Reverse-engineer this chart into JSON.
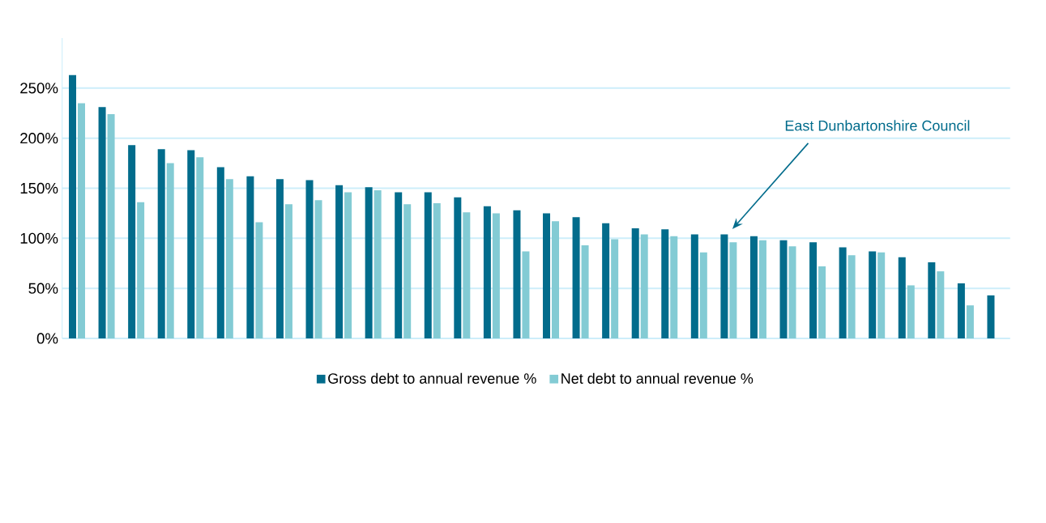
{
  "chart_data": {
    "type": "bar",
    "categories": [
      null,
      null,
      null,
      null,
      null,
      null,
      null,
      null,
      null,
      null,
      null,
      null,
      null,
      null,
      null,
      null,
      null,
      null,
      null,
      null,
      null,
      null,
      null,
      null,
      null,
      null,
      null,
      null,
      null,
      null,
      null,
      null
    ],
    "series": [
      {
        "name": "Gross debt to annual revenue %",
        "color": "#026c8c",
        "values": [
          263,
          231,
          193,
          189,
          188,
          171,
          162,
          159,
          158,
          153,
          151,
          146,
          146,
          141,
          132,
          128,
          125,
          121,
          115,
          110,
          109,
          104,
          104,
          102,
          98,
          96,
          91,
          87,
          81,
          76,
          55,
          43
        ]
      },
      {
        "name": "Net debt to annual revenue %",
        "color": "#83cbd4",
        "values": [
          235,
          224,
          136,
          175,
          181,
          159,
          116,
          134,
          138,
          146,
          148,
          134,
          135,
          126,
          125,
          87,
          117,
          93,
          99,
          104,
          102,
          86,
          96,
          98,
          92,
          72,
          83,
          86,
          53,
          67,
          33,
          null
        ]
      }
    ],
    "ylim": [
      0,
      300
    ],
    "yticks": [
      {
        "value": 0,
        "label": "0%"
      },
      {
        "value": 50,
        "label": "50%"
      },
      {
        "value": 100,
        "label": "100%"
      },
      {
        "value": 150,
        "label": "150%"
      },
      {
        "value": 200,
        "label": "200%"
      },
      {
        "value": 250,
        "label": "250%"
      }
    ],
    "grid": "y",
    "legend": "bottom",
    "annotations": [
      "East Dunbartonshire Council"
    ]
  }
}
